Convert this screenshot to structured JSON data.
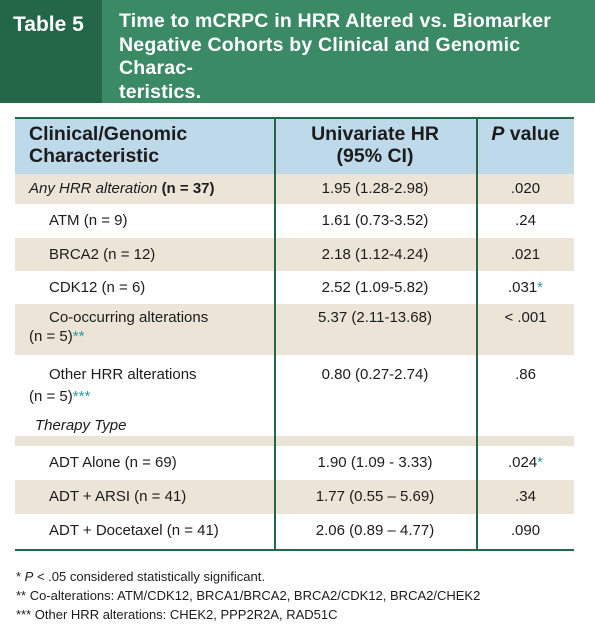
{
  "header": {
    "tag": "Table 5",
    "title_lines": [
      "Time to mCRPC in HRR Altered vs. Biomarker",
      "Negative Cohorts by Clinical and Genomic Charac-",
      "teristics."
    ]
  },
  "columns": {
    "col1_line1": "Clinical/Genomic",
    "col1_line2": "Characteristic",
    "col2_line1": "Univariate HR",
    "col2_line2": "(95% CI)",
    "col3_p": "P",
    "col3_rest": " value"
  },
  "rows": [
    {
      "label_italic": "Any HRR alteration ",
      "label_bold": "(n = 37)",
      "hr": "1.95 (1.28-2.98)",
      "p": ".020"
    },
    {
      "label": "ATM (n = 9)",
      "hr": "1.61 (0.73-3.52)",
      "p": ".24"
    },
    {
      "label": "BRCA2 (n = 12)",
      "hr": "2.18 (1.12-4.24)",
      "p": ".021"
    },
    {
      "label": "CDK12 (n = 6)",
      "hr": "2.52 (1.09-5.82)",
      "p": ".031",
      "p_mark": "*"
    },
    {
      "label_l1": "Co-occurring alterations",
      "label_l2": "(n = 5)",
      "mark": "**",
      "hr": "5.37 (2.11-13.68)",
      "p": "< .001"
    },
    {
      "label_l1": "Other HRR alterations",
      "label_l2": "(n = 5)",
      "mark": "***",
      "hr": "0.80 (0.27-2.74)",
      "p": ".86"
    },
    {
      "section": "Therapy Type"
    },
    {
      "label": "ADT Alone (n = 69)",
      "hr": "1.90 (1.09 - 3.33)",
      "p": ".024",
      "p_mark": "*"
    },
    {
      "label": "ADT + ARSI (n = 41)",
      "hr": "1.77 (0.55 – 5.69)",
      "p": ".34"
    },
    {
      "label": "ADT + Docetaxel (n = 41)",
      "hr": "2.06 (0.89 – 4.77)",
      "p": ".090"
    }
  ],
  "footnotes": {
    "f1_star": "* ",
    "f1_p": "P",
    "f1_rest": " < .05 considered statistically significant.",
    "f2": "** Co-alterations: ATM/CDK12, BRCA1/BRCA2, BRCA2/CDK12, BRCA2/CHEK2",
    "f3": "*** Other HRR alterations: CHEK2, PPP2R2A, RAD51C"
  },
  "colors": {
    "header_green": "#3a8a66",
    "tag_green": "#246648",
    "header_blue": "#bed9ea",
    "row_shade": "#ebe4d7",
    "marker_teal": "#2a9aa0"
  }
}
